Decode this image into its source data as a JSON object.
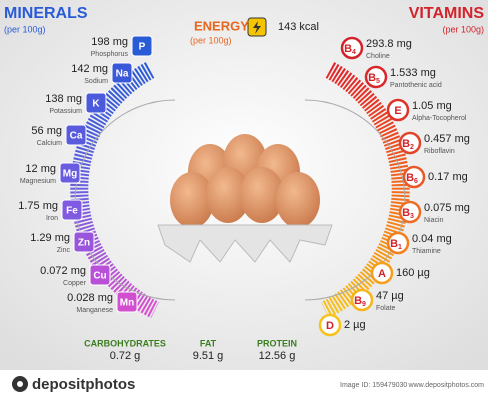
{
  "minerals": {
    "title": "MINERALS",
    "subtitle": "(per 100g)",
    "items": [
      {
        "symbol": "P",
        "amount": "198 mg",
        "name": "Phosphorus"
      },
      {
        "symbol": "Na",
        "amount": "142 mg",
        "name": "Sodium"
      },
      {
        "symbol": "K",
        "amount": "138 mg",
        "name": "Potassium"
      },
      {
        "symbol": "Ca",
        "amount": "56 mg",
        "name": "Calcium"
      },
      {
        "symbol": "Mg",
        "amount": "12 mg",
        "name": "Magnesium"
      },
      {
        "symbol": "Fe",
        "amount": "1.75 mg",
        "name": "Iron"
      },
      {
        "symbol": "Zn",
        "amount": "1.29 mg",
        "name": "Zinc"
      },
      {
        "symbol": "Cu",
        "amount": "0.072 mg",
        "name": "Copper"
      },
      {
        "symbol": "Mn",
        "amount": "0.028 mg",
        "name": "Manganese"
      }
    ]
  },
  "energy": {
    "title": "ENERGY",
    "subtitle": "(per 100g)",
    "value": "143 kcal"
  },
  "vitamins": {
    "title": "VITAMINS",
    "subtitle": "(per 100g)",
    "items": [
      {
        "symbol": "B",
        "sub": "4",
        "amount": "293.8 mg",
        "name": "Choline"
      },
      {
        "symbol": "B",
        "sub": "5",
        "amount": "1.533 mg",
        "name": "Pantothenic acid"
      },
      {
        "symbol": "E",
        "amount": "1.05 mg",
        "name": "Alpha-Tocopherol"
      },
      {
        "symbol": "B",
        "sub": "2",
        "amount": "0.457 mg",
        "name": "Riboflavin"
      },
      {
        "symbol": "B",
        "sub": "6",
        "amount": "0.17 mg"
      },
      {
        "symbol": "B",
        "sub": "3",
        "amount": "0.075 mg",
        "name": "Niacin"
      },
      {
        "symbol": "B",
        "sub": "1",
        "amount": "0.04 mg",
        "name": "Thiamine"
      },
      {
        "symbol": "A",
        "amount": "160 µg"
      },
      {
        "symbol": "B",
        "sub": "9",
        "amount": "47 µg",
        "name": "Folate"
      },
      {
        "symbol": "D",
        "amount": "2 µg"
      }
    ]
  },
  "macros": [
    {
      "name": "CARBOHYDRATES",
      "amount": "0.72 g"
    },
    {
      "name": "FAT",
      "amount": "9.51 g"
    },
    {
      "name": "PROTEIN",
      "amount": "12.56 g"
    }
  ],
  "footer": {
    "brand": "depositphotos",
    "image_id": "Image ID: 159479030",
    "url": "www.depositphotos.com"
  }
}
